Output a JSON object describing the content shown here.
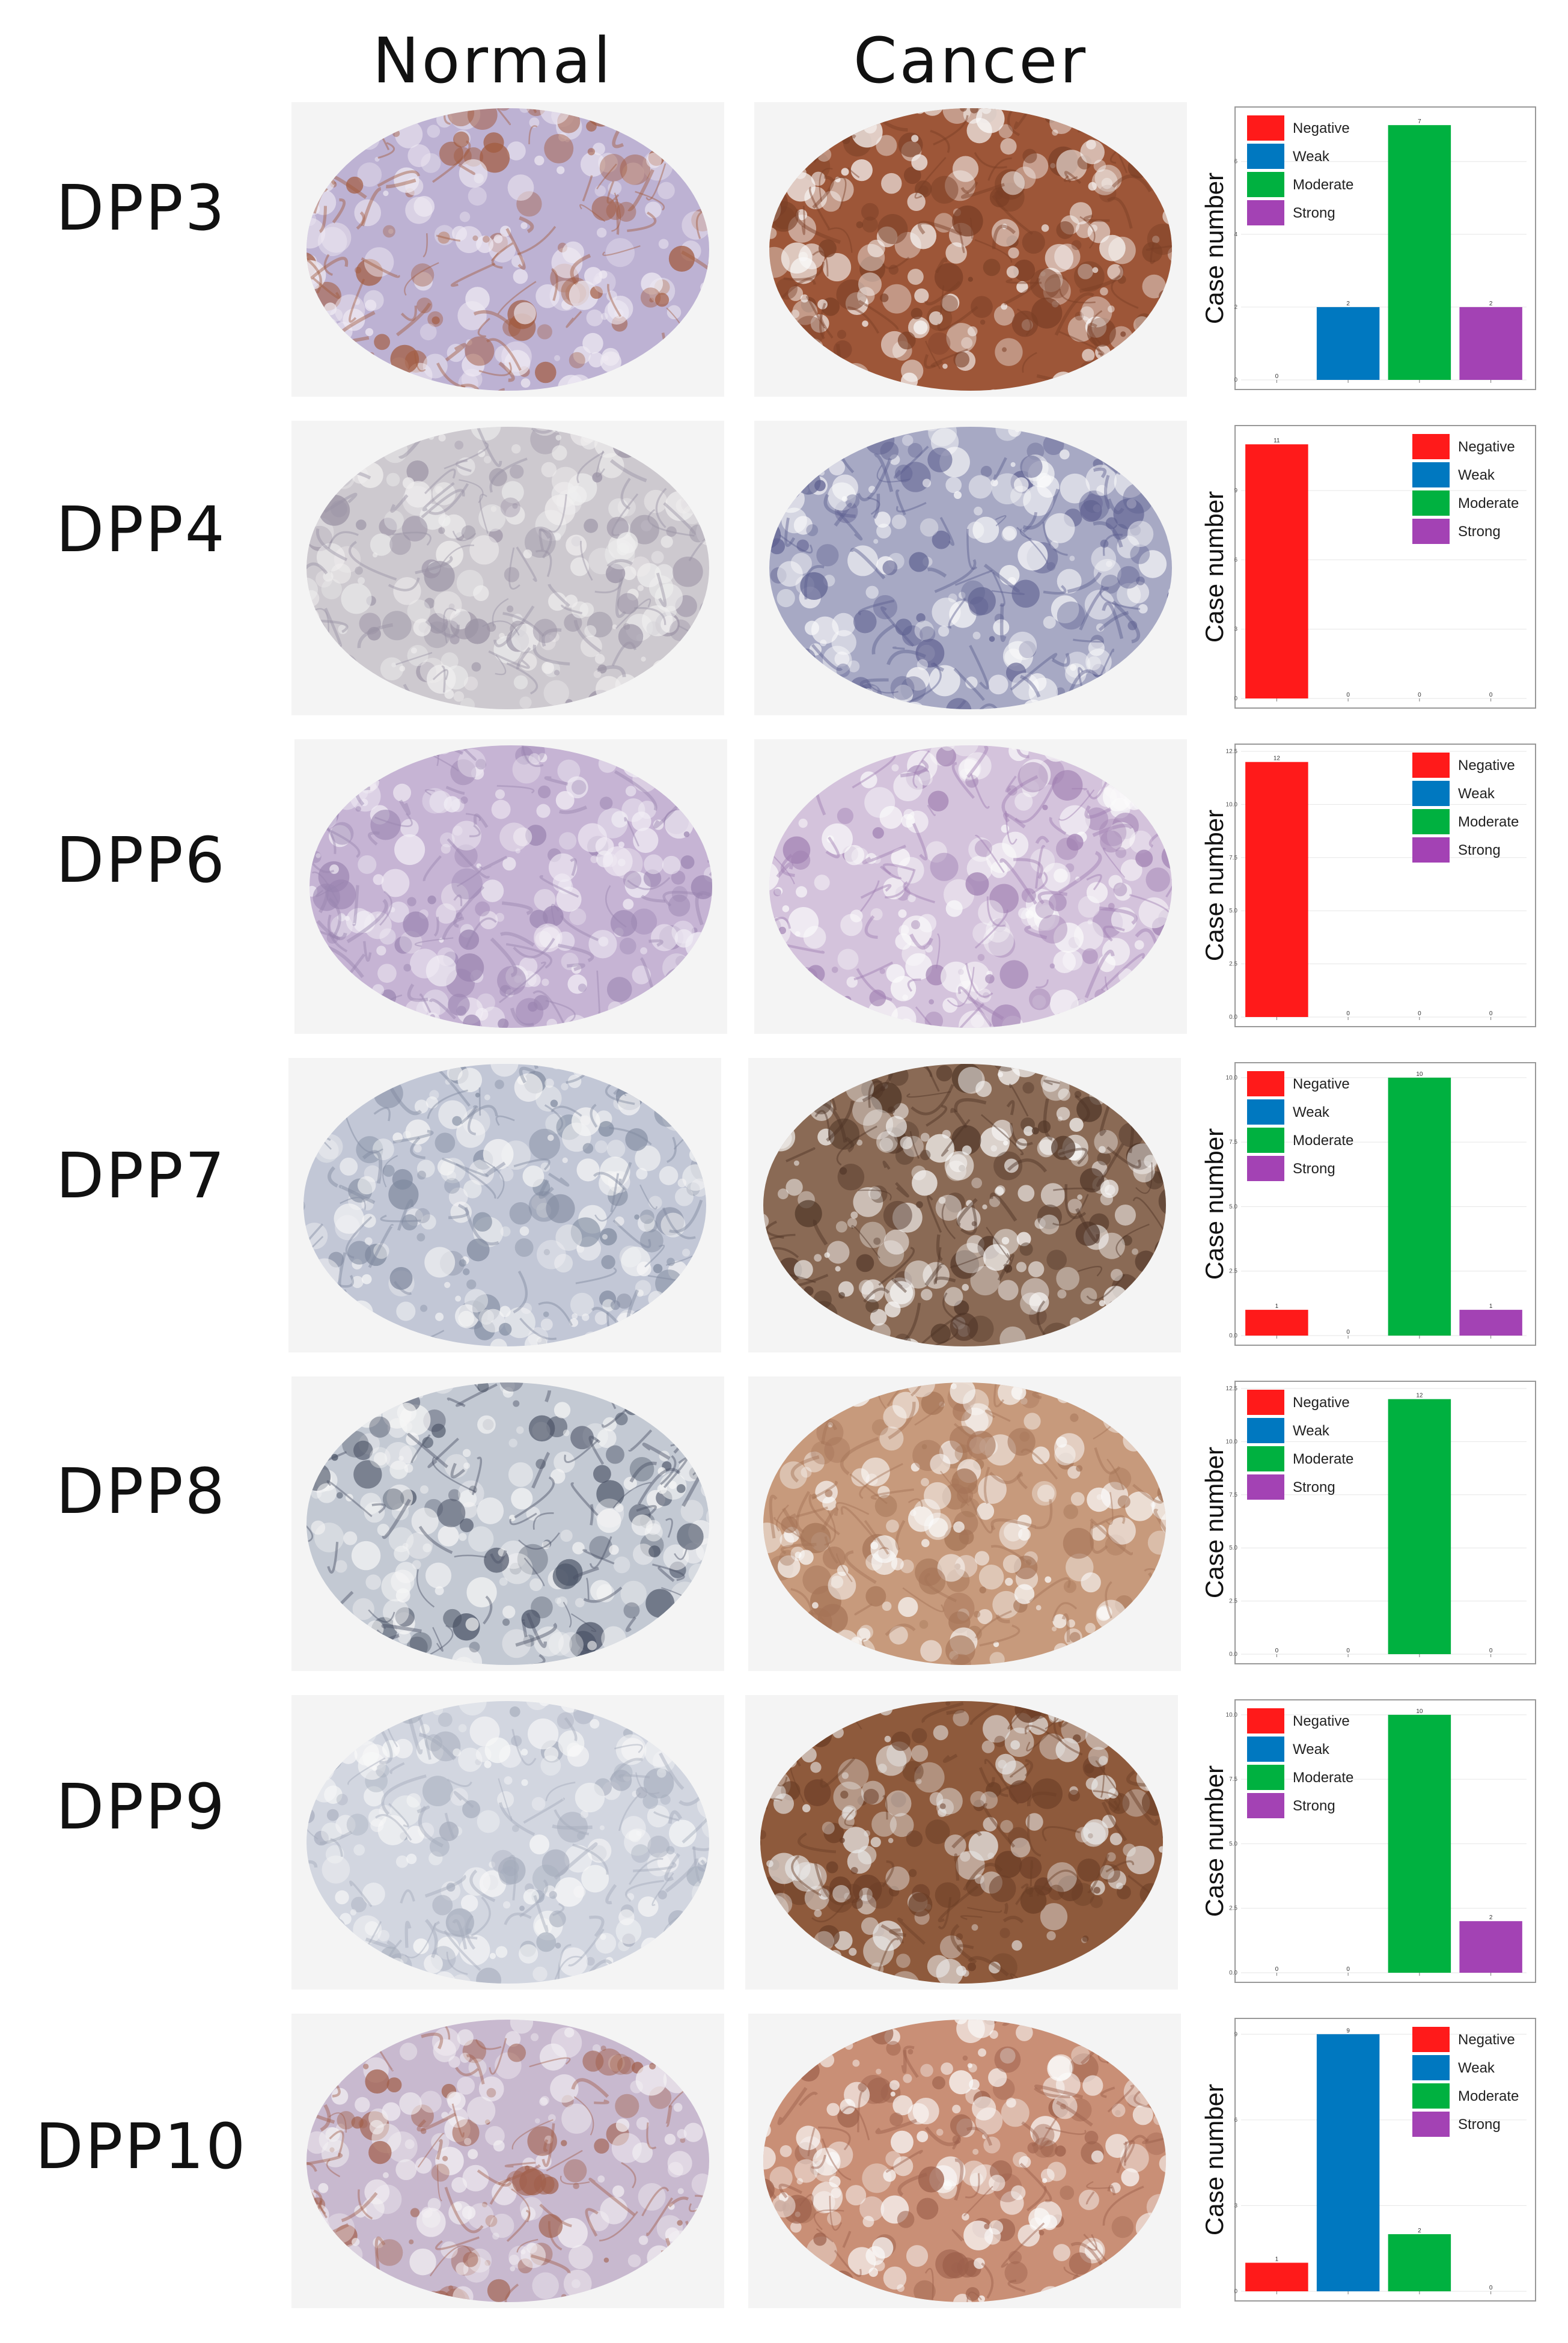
{
  "headers": {
    "normal": "Normal",
    "cancer": "Cancer"
  },
  "colors": {
    "Negative": "#ff1a1a",
    "Weak": "#0078c0",
    "Moderate": "#00b140",
    "Strong": "#a342b4"
  },
  "tissue_palettes": {
    "DPP3": {
      "normal": [
        "#efeaf3",
        "#bdb2d3",
        "#a25a3e"
      ],
      "cancer": [
        "#fbfbfb",
        "#9d5638",
        "#7a3f26"
      ]
    },
    "DPP4": {
      "normal": [
        "#f0efef",
        "#cdc9cf",
        "#9a92a4"
      ],
      "cancer": [
        "#fbfbfb",
        "#a7a9c4",
        "#5e6090"
      ]
    },
    "DPP6": {
      "normal": [
        "#f2eef5",
        "#c6b4d4",
        "#9a84b0"
      ],
      "cancer": [
        "#fbfbfb",
        "#d4c3dc",
        "#9f7fb1"
      ]
    },
    "DPP7": {
      "normal": [
        "#f6f6f6",
        "#c2c7d6",
        "#808a9f"
      ],
      "cancer": [
        "#fbfbfb",
        "#8a6a55",
        "#4e3426"
      ]
    },
    "DPP8": {
      "normal": [
        "#f6f6f6",
        "#c3c9d3",
        "#4b5366"
      ],
      "cancer": [
        "#fbfbfb",
        "#c79a7c",
        "#a57457"
      ]
    },
    "DPP9": {
      "normal": [
        "#f8f8f8",
        "#d2d6e0",
        "#a4abbb"
      ],
      "cancer": [
        "#e9e9e9",
        "#8e5a3c",
        "#6a3d26"
      ]
    },
    "DPP10": {
      "normal": [
        "#f4f1f4",
        "#c8b9cf",
        "#a15f4b"
      ],
      "cancer": [
        "#fbfbfb",
        "#c98f76",
        "#9c604b"
      ]
    }
  },
  "chart_data": [
    {
      "gene": "DPP3",
      "type": "bar",
      "ylabel": "Case number",
      "categories": [
        "Negative",
        "Weak",
        "Moderate",
        "Strong"
      ],
      "values": [
        0,
        2,
        7,
        2
      ],
      "ylim": [
        0,
        7.3
      ],
      "yticks": [
        "0",
        "2",
        "4",
        "6"
      ],
      "ytick_values": [
        0,
        2,
        4,
        6
      ],
      "data_labels": [
        "0",
        "2",
        "7",
        "2"
      ],
      "legend": [
        "Negative",
        "Weak",
        "Moderate",
        "Strong"
      ],
      "legend_position": "top-left"
    },
    {
      "gene": "DPP4",
      "type": "bar",
      "ylabel": "Case number",
      "categories": [
        "Negative",
        "Weak",
        "Moderate",
        "Strong"
      ],
      "values": [
        11,
        0,
        0,
        0
      ],
      "ylim": [
        0,
        11.5
      ],
      "yticks": [
        "0",
        "3",
        "6",
        "9"
      ],
      "ytick_values": [
        0,
        3,
        6,
        9
      ],
      "data_labels": [
        "11",
        "0",
        "0",
        "0"
      ],
      "legend": [
        "Negative",
        "Weak",
        "Moderate",
        "Strong"
      ],
      "legend_position": "top-right"
    },
    {
      "gene": "DPP6",
      "type": "bar",
      "ylabel": "Case number",
      "categories": [
        "Negative",
        "Weak",
        "Moderate",
        "Strong"
      ],
      "values": [
        12,
        0,
        0,
        0
      ],
      "ylim": [
        0,
        12.5
      ],
      "yticks": [
        "0.0",
        "2.5",
        "5.0",
        "7.5",
        "10.0",
        "12.5"
      ],
      "ytick_values": [
        0,
        2.5,
        5,
        7.5,
        10,
        12.5
      ],
      "data_labels": [
        "12",
        "0",
        "0",
        "0"
      ],
      "legend": [
        "Negative",
        "Weak",
        "Moderate",
        "Strong"
      ],
      "legend_position": "top-right"
    },
    {
      "gene": "DPP7",
      "type": "bar",
      "ylabel": "Case number",
      "categories": [
        "Negative",
        "Weak",
        "Moderate",
        "Strong"
      ],
      "values": [
        1,
        0,
        10,
        1
      ],
      "ylim": [
        0,
        10.3
      ],
      "yticks": [
        "0.0",
        "2.5",
        "5.0",
        "7.5",
        "10.0"
      ],
      "ytick_values": [
        0,
        2.5,
        5,
        7.5,
        10
      ],
      "data_labels": [
        "1",
        "0",
        "10",
        "1"
      ],
      "legend": [
        "Negative",
        "Weak",
        "Moderate",
        "Strong"
      ],
      "legend_position": "top-left"
    },
    {
      "gene": "DPP8",
      "type": "bar",
      "ylabel": "Case number",
      "categories": [
        "Negative",
        "Weak",
        "Moderate",
        "Strong"
      ],
      "values": [
        0,
        0,
        12,
        0
      ],
      "ylim": [
        0,
        12.5
      ],
      "yticks": [
        "0.0",
        "2.5",
        "5.0",
        "7.5",
        "10.0",
        "12.5"
      ],
      "ytick_values": [
        0,
        2.5,
        5,
        7.5,
        10,
        12.5
      ],
      "data_labels": [
        "0",
        "0",
        "12",
        "0"
      ],
      "legend": [
        "Negative",
        "Weak",
        "Moderate",
        "Strong"
      ],
      "legend_position": "top-left"
    },
    {
      "gene": "DPP9",
      "type": "bar",
      "ylabel": "Case number",
      "categories": [
        "Negative",
        "Weak",
        "Moderate",
        "Strong"
      ],
      "values": [
        0,
        0,
        10,
        2
      ],
      "ylim": [
        0,
        10.3
      ],
      "yticks": [
        "0.0",
        "2.5",
        "5.0",
        "7.5",
        "10.0"
      ],
      "ytick_values": [
        0,
        2.5,
        5,
        7.5,
        10
      ],
      "data_labels": [
        "0",
        "0",
        "10",
        "2"
      ],
      "legend": [
        "Negative",
        "Weak",
        "Moderate",
        "Strong"
      ],
      "legend_position": "top-left"
    },
    {
      "gene": "DPP10",
      "type": "bar",
      "ylabel": "Case number",
      "categories": [
        "Negative",
        "Weak",
        "Moderate",
        "Strong"
      ],
      "values": [
        1,
        9,
        2,
        0
      ],
      "ylim": [
        0,
        9.3
      ],
      "yticks": [
        "0",
        "3",
        "6",
        "9"
      ],
      "ytick_values": [
        0,
        3,
        6,
        9
      ],
      "data_labels": [
        "1",
        "9",
        "2",
        "0"
      ],
      "legend": [
        "Negative",
        "Weak",
        "Moderate",
        "Strong"
      ],
      "legend_position": "top-right"
    }
  ]
}
